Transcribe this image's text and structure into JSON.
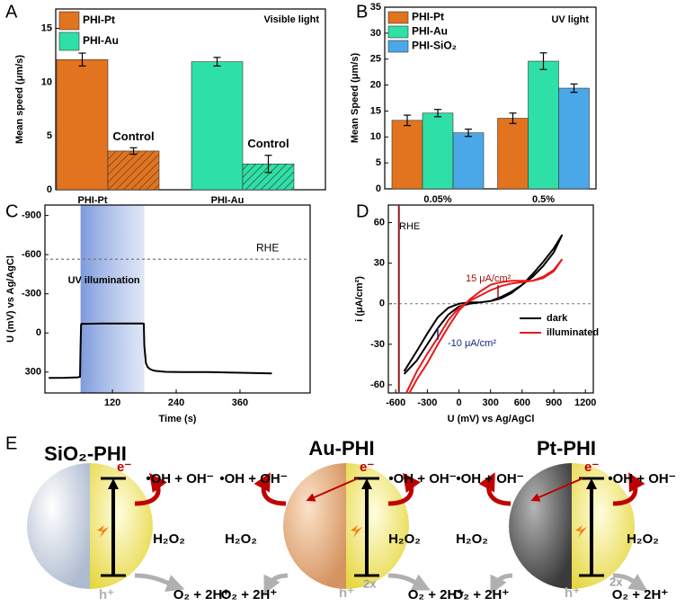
{
  "chart_data": [
    {
      "type": "bar",
      "panel_label": "A",
      "ylabel": "Mean speed (μm/s)",
      "annotation": "Visible light",
      "categories": [
        "PHI-Pt",
        "PHI-Au"
      ],
      "series": [
        {
          "name": "PHI-Pt",
          "color": "#e2731f",
          "values": [
            12.1,
            null
          ],
          "errors": [
            0.6,
            null
          ]
        },
        {
          "name": "PHI-Au",
          "color": "#2fe0a6",
          "values": [
            null,
            11.9
          ],
          "errors": [
            null,
            0.4
          ]
        }
      ],
      "control": {
        "labels": [
          "Control",
          "Control"
        ],
        "values": [
          3.6,
          2.4
        ],
        "errors": [
          0.3,
          0.8
        ]
      },
      "ylim": [
        0,
        16.8
      ],
      "yticks": [
        0,
        5,
        10,
        15
      ]
    },
    {
      "type": "bar",
      "panel_label": "B",
      "ylabel": "Mean Speed (μm/s)",
      "annotation": "UV light",
      "categories": [
        "0.05%",
        "0.5%"
      ],
      "series": [
        {
          "name": "PHI-Pt",
          "color": "#e2731f",
          "values": [
            13.2,
            13.6
          ],
          "errors": [
            1.0,
            1.0
          ]
        },
        {
          "name": "PHI-Au",
          "color": "#2fe0a6",
          "values": [
            14.6,
            24.6
          ],
          "errors": [
            0.7,
            1.6
          ]
        },
        {
          "name": "PHI-SiO₂",
          "color": "#4aa8e8",
          "values": [
            10.8,
            19.4
          ],
          "errors": [
            0.7,
            0.8
          ]
        }
      ],
      "ylim": [
        0,
        35
      ],
      "yticks": [
        0,
        5,
        10,
        15,
        20,
        25,
        30,
        35
      ]
    },
    {
      "type": "line",
      "panel_label": "C",
      "xlabel": "Time (s)",
      "ylabel": "U (mV) vs Ag/AgCl",
      "x": [
        0,
        30,
        55,
        59,
        60,
        61,
        62,
        100,
        150,
        178,
        179,
        180,
        183,
        186,
        190,
        195,
        200,
        220,
        250,
        300,
        360,
        420
      ],
      "series": [
        {
          "color": "#000000",
          "values": [
            345,
            344,
            340,
            336,
            100,
            -65,
            -70,
            -72,
            -72,
            -72,
            -70,
            100,
            230,
            260,
            275,
            285,
            290,
            298,
            300,
            300,
            305,
            310
          ]
        }
      ],
      "shade": {
        "xrange": [
          60,
          180
        ],
        "label": "UV illumination",
        "color": "#8fa8e0"
      },
      "reference": {
        "value": -565,
        "label": "RHE",
        "color": "#777777"
      },
      "xlim": [
        -7,
        492
      ],
      "xticks": [
        120,
        240,
        360
      ],
      "ylim": [
        460,
        -980
      ],
      "yticks": [
        -900,
        -600,
        -300,
        0,
        300
      ]
    },
    {
      "type": "line",
      "panel_label": "D",
      "xlabel": "U (mV) vs Ag/AgCl",
      "ylabel": "i (μA/cm²)",
      "series": [
        {
          "name": "dark",
          "color": "#000000",
          "x": [
            -520,
            -400,
            -300,
            -200,
            -100,
            0,
            100,
            200,
            300,
            400,
            500,
            600,
            700,
            800,
            900,
            980,
            900,
            800,
            700,
            600,
            500,
            400,
            300,
            200,
            100,
            0,
            -100,
            -200,
            -300,
            -400,
            -520
          ],
          "values": [
            -50,
            -35,
            -22,
            -10,
            -3,
            0,
            1,
            1,
            2,
            4,
            8,
            14,
            22,
            31,
            41,
            51,
            38,
            28,
            20,
            14,
            9,
            5,
            2,
            1,
            0,
            -2,
            -8,
            -18,
            -30,
            -42,
            -52
          ]
        },
        {
          "name": "illuminated",
          "color": "#e8191b",
          "x": [
            -500,
            -400,
            -300,
            -200,
            -100,
            0,
            100,
            200,
            300,
            400,
            500,
            600,
            700,
            800,
            900,
            980,
            900,
            800,
            700,
            600,
            500,
            400,
            300,
            200,
            100,
            0,
            -100,
            -200,
            -300,
            -400,
            -470
          ],
          "values": [
            -66,
            -50,
            -37,
            -25,
            -12,
            -3,
            2,
            6,
            10,
            13,
            15,
            16,
            17,
            20,
            25,
            33,
            24,
            19,
            17,
            17,
            17,
            16,
            14,
            9,
            3,
            -5,
            -17,
            -30,
            -44,
            -56,
            -66
          ]
        }
      ],
      "reference": {
        "value": -570,
        "label": "RHE",
        "color": "#8b1a1a",
        "orientation": "vertical"
      },
      "annotations": [
        {
          "text": "15 μA/cm²",
          "color": "#a01010"
        },
        {
          "text": "-10 μA/cm²",
          "color": "#1a237e"
        }
      ],
      "zero_line": true,
      "xlim": [
        -670,
        1275
      ],
      "xticks": [
        -600,
        -300,
        0,
        300,
        600,
        900,
        1200
      ],
      "ylim": [
        -66,
        73
      ],
      "yticks": [
        -60,
        -30,
        0,
        30,
        60
      ]
    }
  ],
  "diagram": {
    "label": "E",
    "particles": [
      {
        "title": "SiO₂-PHI",
        "electron": "e⁻",
        "hole": "h⁺",
        "sides": [
          {
            "radicals": "•OH + OH⁻",
            "oxidant": "H₂O₂",
            "oxygen": "O₂ + 2H⁺"
          }
        ]
      },
      {
        "title": "Au-PHI",
        "electron": "e⁻",
        "hole": "h⁺",
        "factor": "2x",
        "sides": [
          {
            "radicals": "•OH + OH⁻",
            "oxidant": "H₂O₂",
            "oxygen": "O₂ + 2H⁺"
          },
          {
            "radicals": "•OH + OH⁻",
            "oxidant": "H₂O₂",
            "oxygen": "O₂ + 2H⁺"
          }
        ]
      },
      {
        "title": "Pt-PHI",
        "electron": "e⁻",
        "hole": "h⁺",
        "factor": "2x",
        "sides": [
          {
            "radicals": "•OH + OH⁻",
            "oxidant": "H₂O₂",
            "oxygen": "O₂ + 2H⁺"
          },
          {
            "radicals": "•OH + OH⁻",
            "oxidant": "H₂O₂",
            "oxygen": "O₂ + 2H⁺"
          }
        ]
      }
    ]
  }
}
